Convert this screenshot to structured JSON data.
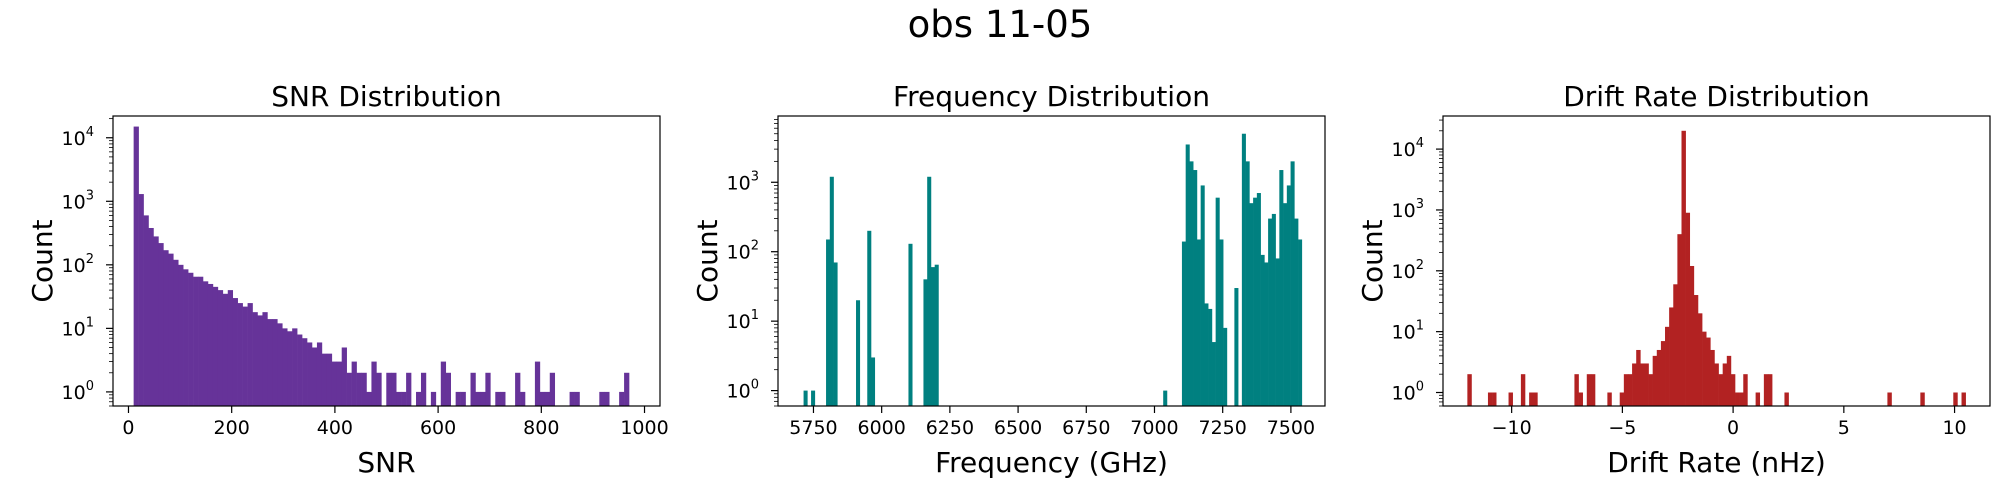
{
  "figure": {
    "title": "obs 11-05"
  },
  "chart_data": [
    {
      "type": "bar",
      "title": "SNR Distribution",
      "xlabel": "SNR",
      "ylabel": "Count",
      "yscale": "log",
      "color": "#663399",
      "xlim": [
        -30,
        1030
      ],
      "ylim": [
        0.6,
        22000
      ],
      "xticks": [
        0,
        200,
        400,
        600,
        800,
        1000
      ],
      "yticks": [
        1,
        10,
        100,
        1000,
        10000
      ],
      "bin_range": [
        10,
        970
      ],
      "counts": [
        15000,
        1300,
        600,
        380,
        280,
        220,
        170,
        150,
        120,
        100,
        85,
        75,
        65,
        65,
        55,
        50,
        45,
        40,
        35,
        40,
        30,
        25,
        22,
        25,
        18,
        16,
        18,
        14,
        14,
        12,
        10,
        9,
        10,
        8,
        7,
        6,
        5,
        6,
        4,
        4,
        3,
        3,
        5,
        2,
        3,
        2,
        2,
        1,
        3,
        2,
        0,
        2,
        2,
        1,
        1,
        2,
        0,
        1,
        2,
        0,
        1,
        0,
        3,
        2,
        0,
        1,
        1,
        0,
        2,
        1,
        1,
        2,
        0,
        1,
        1,
        0,
        0,
        2,
        1,
        0,
        0,
        3,
        1,
        1,
        2,
        0,
        0,
        0,
        1,
        1,
        0,
        0,
        0,
        0,
        1,
        1,
        0,
        0,
        1,
        2
      ]
    },
    {
      "type": "bar",
      "title": "Frequency Distribution",
      "xlabel": "Frequency (GHz)",
      "ylabel": "Count",
      "yscale": "log",
      "color": "#008080",
      "xlim": [
        5620,
        7625
      ],
      "ylim": [
        0.6,
        9000
      ],
      "xticks": [
        5750,
        6000,
        6250,
        6500,
        6750,
        7000,
        7250,
        7500
      ],
      "yticks": [
        1,
        10,
        100,
        1000
      ],
      "bin_range": [
        5700,
        7540
      ],
      "counts": [
        0,
        1,
        0,
        1,
        0,
        0,
        0,
        150,
        1200,
        70,
        0,
        0,
        0,
        0,
        0,
        20,
        0,
        0,
        200,
        3,
        0,
        0,
        0,
        0,
        0,
        0,
        0,
        0,
        0,
        130,
        0,
        0,
        0,
        40,
        1200,
        60,
        65,
        0,
        0,
        0,
        0,
        0,
        0,
        0,
        0,
        0,
        0,
        0,
        0,
        0,
        0,
        0,
        0,
        0,
        0,
        0,
        0,
        0,
        0,
        0,
        0,
        0,
        0,
        0,
        0,
        0,
        0,
        0,
        0,
        0,
        0,
        0,
        0,
        0,
        0,
        0,
        0,
        0,
        0,
        0,
        0,
        0,
        0,
        0,
        0,
        0,
        0,
        0,
        0,
        0,
        0,
        0,
        0,
        0,
        0,
        0,
        0,
        1,
        0,
        0,
        0,
        0,
        140,
        3500,
        2000,
        1500,
        150,
        900,
        18,
        15,
        5,
        600,
        150,
        8,
        0,
        0,
        30,
        0,
        5000,
        2000,
        500,
        600,
        700,
        90,
        70,
        300,
        350,
        80,
        1500,
        500,
        900,
        2000,
        300,
        150
      ]
    },
    {
      "type": "bar",
      "title": "Drift Rate Distribution",
      "xlabel": "Drift Rate (nHz)",
      "ylabel": "Count",
      "yscale": "log",
      "color": "#b22222",
      "xlim": [
        -13.1,
        11.6
      ],
      "ylim": [
        0.6,
        35000
      ],
      "xticks": [
        -10,
        -5,
        0,
        5,
        10
      ],
      "yticks": [
        1,
        10,
        100,
        1000,
        10000
      ],
      "bin_range": [
        -12,
        10.5
      ],
      "counts": [
        2,
        0,
        0,
        0,
        0,
        1,
        1,
        0,
        0,
        0,
        1,
        0,
        0,
        2,
        0,
        1,
        1,
        0,
        0,
        0,
        0,
        0,
        0,
        0,
        0,
        0,
        2,
        1,
        0,
        2,
        2,
        0,
        0,
        0,
        1,
        0,
        0,
        1,
        2,
        2,
        3,
        5,
        3,
        3,
        2,
        4,
        5,
        7,
        12,
        25,
        60,
        400,
        20000,
        900,
        120,
        40,
        20,
        10,
        8,
        5,
        3,
        2,
        3,
        4,
        2,
        1,
        1,
        2,
        0,
        0,
        1,
        0,
        2,
        2,
        0,
        0,
        0,
        1,
        0,
        0,
        0,
        0,
        0,
        0,
        0,
        0,
        0,
        0,
        0,
        0,
        0,
        0,
        0,
        0,
        0,
        0,
        0,
        0,
        0,
        0,
        0,
        0,
        1,
        0,
        0,
        0,
        0,
        0,
        0,
        0,
        1,
        0,
        0,
        0,
        0,
        0,
        0,
        0,
        1,
        0,
        1
      ]
    }
  ]
}
